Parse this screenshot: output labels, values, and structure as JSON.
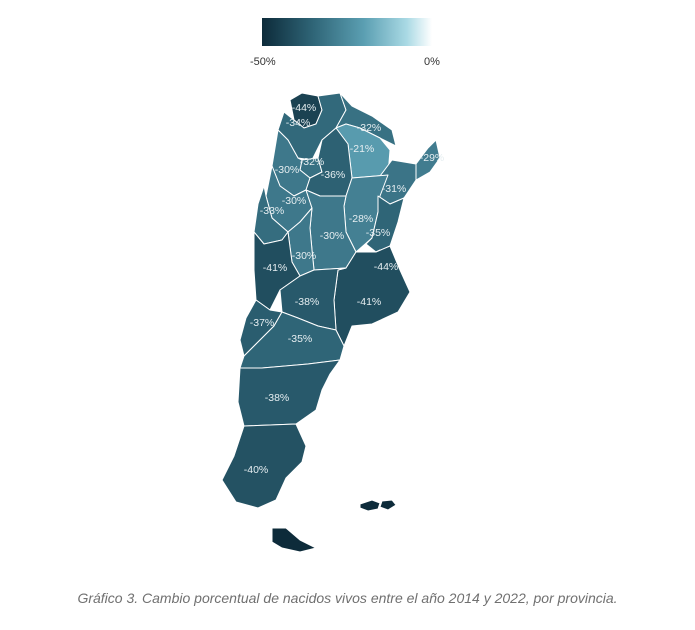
{
  "legend": {
    "min_label": "-50%",
    "max_label": "0%"
  },
  "caption": "Gráfico 3. Cambio porcentual de nacidos vivos entre el año 2014 y 2022, por provincia.",
  "color_scale": {
    "min": -50,
    "max": 0,
    "stops": [
      "#0d2b3a",
      "#2f6577",
      "#5b9fb2",
      "#a9d9e4",
      "#ffffff"
    ]
  },
  "provinces": [
    {
      "id": "jujuy",
      "value": -44,
      "label": "-44%"
    },
    {
      "id": "salta",
      "value": -34,
      "label": "-34%"
    },
    {
      "id": "formosa",
      "value": -32,
      "label": "-32%"
    },
    {
      "id": "chaco",
      "value": -21,
      "label": "-21%"
    },
    {
      "id": "misiones",
      "value": -29,
      "label": "-29%"
    },
    {
      "id": "tucuman",
      "value": -32,
      "label": "-32%"
    },
    {
      "id": "catamarca",
      "value": -30,
      "label": "-30%"
    },
    {
      "id": "santiago-del-estero",
      "value": -36,
      "label": "-36%"
    },
    {
      "id": "corrientes",
      "value": -31,
      "label": "-31%"
    },
    {
      "id": "la-rioja",
      "value": -30,
      "label": "-30%"
    },
    {
      "id": "san-juan",
      "value": -33,
      "label": "-33%"
    },
    {
      "id": "santa-fe",
      "value": -28,
      "label": "-28%"
    },
    {
      "id": "entre-rios",
      "value": -35,
      "label": "-35%"
    },
    {
      "id": "cordoba",
      "value": -30,
      "label": "-30%"
    },
    {
      "id": "san-luis",
      "value": -30,
      "label": "-30%"
    },
    {
      "id": "mendoza",
      "value": -41,
      "label": "-41%"
    },
    {
      "id": "caba",
      "value": -44,
      "label": "-44%"
    },
    {
      "id": "buenos-aires",
      "value": -41,
      "label": "-41%"
    },
    {
      "id": "la-pampa",
      "value": -38,
      "label": "-38%"
    },
    {
      "id": "neuquen",
      "value": -37,
      "label": "-37%"
    },
    {
      "id": "rio-negro",
      "value": -35,
      "label": "-35%"
    },
    {
      "id": "chubut",
      "value": -38,
      "label": "-38%"
    },
    {
      "id": "santa-cruz",
      "value": -40,
      "label": "-40%"
    },
    {
      "id": "tierra-del-fuego",
      "value": -50,
      "label": ""
    }
  ]
}
